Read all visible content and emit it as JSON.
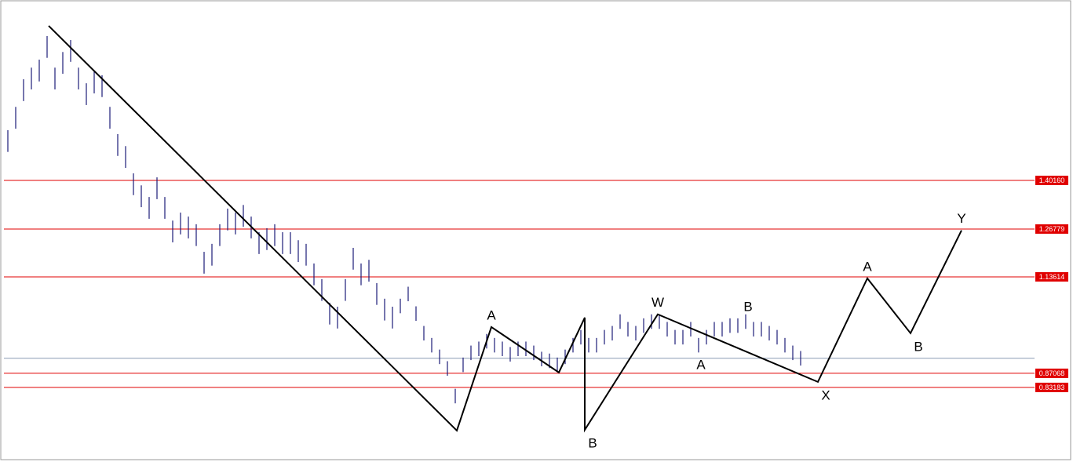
{
  "chart_data": {
    "type": "ohlc",
    "xlim": [
      -0.5,
      130.8
    ],
    "ylim": [
      0.633,
      1.896
    ],
    "color": "#1c1c78",
    "x": [
      0,
      1,
      2,
      3,
      4,
      5,
      6,
      7,
      8,
      9,
      10,
      11,
      12,
      13,
      14,
      15,
      16,
      17,
      18,
      19,
      20,
      21,
      22,
      23,
      24,
      25,
      26,
      27,
      28,
      29,
      30,
      31,
      32,
      33,
      34,
      35,
      36,
      37,
      38,
      39,
      40,
      41,
      42,
      43,
      44,
      45,
      46,
      47,
      48,
      49,
      50,
      51,
      52,
      53,
      54,
      55,
      56,
      57,
      58,
      59,
      60,
      61,
      62,
      63,
      64,
      65,
      66,
      67,
      68,
      69,
      70,
      71,
      72,
      73,
      74,
      75,
      76,
      77,
      78,
      79,
      80,
      81,
      82,
      83,
      84,
      85,
      86,
      87,
      88,
      89,
      90,
      91,
      92,
      93,
      94,
      95,
      96,
      97,
      98,
      99,
      100,
      101
    ],
    "high": [
      1.54,
      1.604,
      1.68,
      1.712,
      1.734,
      1.799,
      1.712,
      1.755,
      1.788,
      1.712,
      1.669,
      1.701,
      1.691,
      1.604,
      1.529,
      1.496,
      1.421,
      1.388,
      1.356,
      1.41,
      1.356,
      1.291,
      1.313,
      1.302,
      1.281,
      1.205,
      1.227,
      1.281,
      1.324,
      1.313,
      1.334,
      1.302,
      1.259,
      1.27,
      1.281,
      1.259,
      1.259,
      1.237,
      1.227,
      1.173,
      1.13,
      1.065,
      1.054,
      1.13,
      1.216,
      1.173,
      1.183,
      1.119,
      1.076,
      1.054,
      1.076,
      1.109,
      1.055,
      1.001,
      0.968,
      0.936,
      0.904,
      0.828,
      0.914,
      0.947,
      0.958,
      0.979,
      0.968,
      0.958,
      0.943,
      0.958,
      0.958,
      0.947,
      0.93,
      0.925,
      0.914,
      0.936,
      0.968,
      0.99,
      0.968,
      0.968,
      0.99,
      1.001,
      1.033,
      1.012,
      1.001,
      1.022,
      1.033,
      1.033,
      1.012,
      0.99,
      0.99,
      1.012,
      0.968,
      0.99,
      1.012,
      1.012,
      1.022,
      1.022,
      1.033,
      1.012,
      1.012,
      1.001,
      0.99,
      0.968,
      0.947,
      0.932
    ],
    "low": [
      1.48,
      1.544,
      1.62,
      1.652,
      1.674,
      1.739,
      1.652,
      1.695,
      1.728,
      1.652,
      1.609,
      1.641,
      1.631,
      1.544,
      1.469,
      1.436,
      1.361,
      1.328,
      1.296,
      1.35,
      1.296,
      1.231,
      1.253,
      1.242,
      1.221,
      1.145,
      1.167,
      1.221,
      1.264,
      1.253,
      1.274,
      1.242,
      1.199,
      1.21,
      1.221,
      1.199,
      1.199,
      1.177,
      1.167,
      1.113,
      1.07,
      1.005,
      0.994,
      1.07,
      1.156,
      1.113,
      1.123,
      1.059,
      1.016,
      0.994,
      1.036,
      1.069,
      1.015,
      0.961,
      0.928,
      0.896,
      0.864,
      0.788,
      0.874,
      0.907,
      0.918,
      0.939,
      0.928,
      0.918,
      0.903,
      0.918,
      0.918,
      0.907,
      0.89,
      0.885,
      0.874,
      0.896,
      0.928,
      0.95,
      0.928,
      0.928,
      0.95,
      0.961,
      0.993,
      0.972,
      0.961,
      0.982,
      0.993,
      0.993,
      0.972,
      0.95,
      0.95,
      0.972,
      0.928,
      0.95,
      0.972,
      0.972,
      0.982,
      0.982,
      0.993,
      0.972,
      0.972,
      0.961,
      0.95,
      0.928,
      0.907,
      0.892
    ],
    "levels": [
      {
        "value": 1.4016,
        "label": "1.40160"
      },
      {
        "value": 1.26779,
        "label": "1.26779"
      },
      {
        "value": 1.13614,
        "label": "1.13614"
      },
      {
        "value": 0.87068,
        "label": "0.87068"
      },
      {
        "value": 0.83183,
        "label": "0.83183"
      }
    ],
    "level_color": "#e00000",
    "current_price": 0.912,
    "current_price_color": "#8a9bb4",
    "wave": {
      "color": "#000000",
      "x": [
        5.2,
        57.2,
        61.6,
        70.2,
        73.5,
        73.5,
        82.8,
        103.2,
        109.5,
        115,
        121.5
      ],
      "y": [
        1.827,
        0.713,
        0.998,
        0.873,
        1.024,
        0.715,
        1.033,
        0.847,
        1.132,
        0.981,
        1.264
      ],
      "labels": [
        null,
        null,
        "A",
        null,
        null,
        "B",
        "W",
        "X",
        "A",
        "B",
        "Y"
      ]
    },
    "annotations": [
      {
        "text": "A",
        "x": 88.3,
        "y": 0.892
      },
      {
        "text": "B",
        "x": 94.3,
        "y": 1.052
      }
    ]
  }
}
